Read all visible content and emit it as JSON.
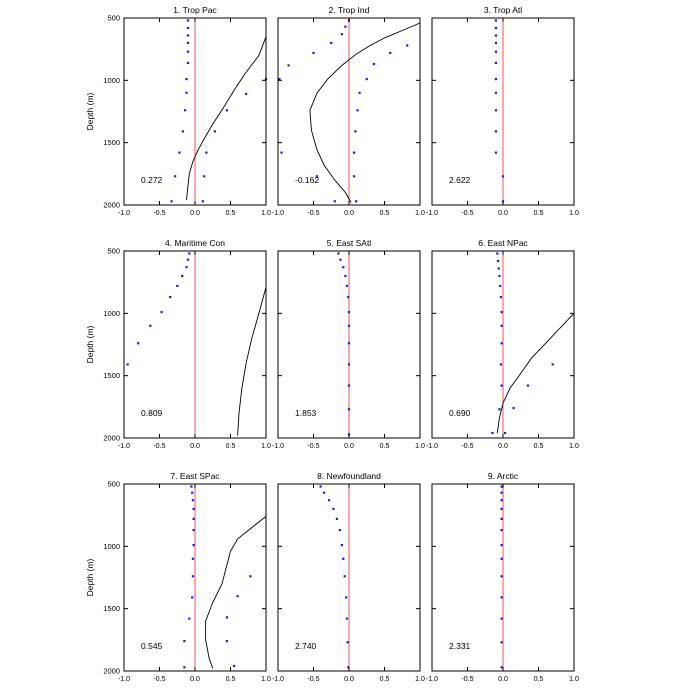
{
  "figure": {
    "ylabel": "Depth (m)",
    "xticks": [
      "-1.0",
      "-0.5",
      "0.0",
      "0.5",
      "1.0"
    ],
    "yticks": [
      "500",
      "1000",
      "1500",
      "2000"
    ]
  },
  "colors": {
    "zero_line": "#ff4d4d",
    "dots": "#1a1aff",
    "curve": "#000000"
  },
  "chart_data": [
    {
      "type": "line",
      "title": "1. Trop Pac",
      "value_label": "0.272",
      "xlim": [
        -1,
        1
      ],
      "ylim": [
        2000,
        500
      ],
      "curve": [
        [
          1.0,
          650
        ],
        [
          0.9,
          800
        ],
        [
          0.7,
          950
        ],
        [
          0.55,
          1080
        ],
        [
          0.4,
          1220
        ],
        [
          0.25,
          1350
        ],
        [
          0.15,
          1450
        ],
        [
          0.05,
          1550
        ],
        [
          -0.03,
          1650
        ],
        [
          -0.08,
          1750
        ],
        [
          -0.1,
          1850
        ],
        [
          -0.12,
          1960
        ]
      ],
      "dots": [
        [
          -0.1,
          520
        ],
        [
          -0.1,
          580
        ],
        [
          -0.1,
          640
        ],
        [
          -0.1,
          700
        ],
        [
          -0.1,
          770
        ],
        [
          -0.1,
          860
        ],
        [
          -0.12,
          990
        ],
        [
          -0.12,
          1100
        ],
        [
          -0.14,
          1240
        ],
        [
          -0.17,
          1410
        ],
        [
          -0.22,
          1580
        ],
        [
          -0.28,
          1770
        ],
        [
          -0.33,
          1970
        ],
        [
          1.0,
          990
        ],
        [
          0.72,
          1110
        ],
        [
          0.45,
          1240
        ],
        [
          0.28,
          1410
        ],
        [
          0.16,
          1580
        ],
        [
          0.13,
          1770
        ],
        [
          0.11,
          1970
        ]
      ]
    },
    {
      "type": "line",
      "title": "2. Trop Ind",
      "value_label": "-0.162",
      "xlim": [
        -1,
        1
      ],
      "ylim": [
        2000,
        500
      ],
      "curve": [
        [
          1.0,
          540
        ],
        [
          0.75,
          600
        ],
        [
          0.5,
          660
        ],
        [
          0.3,
          720
        ],
        [
          0.1,
          790
        ],
        [
          -0.1,
          880
        ],
        [
          -0.3,
          990
        ],
        [
          -0.45,
          1100
        ],
        [
          -0.55,
          1240
        ],
        [
          -0.53,
          1400
        ],
        [
          -0.45,
          1560
        ],
        [
          -0.35,
          1680
        ],
        [
          -0.2,
          1800
        ],
        [
          -0.05,
          1900
        ],
        [
          0.03,
          1980
        ]
      ],
      "dots": [
        [
          0.0,
          520
        ],
        [
          -0.05,
          570
        ],
        [
          -0.1,
          630
        ],
        [
          -0.25,
          700
        ],
        [
          -0.5,
          780
        ],
        [
          -0.85,
          880
        ],
        [
          -0.98,
          990
        ],
        [
          -0.95,
          1580
        ],
        [
          -0.45,
          1770
        ],
        [
          -0.2,
          1970
        ],
        [
          0.82,
          720
        ],
        [
          0.58,
          780
        ],
        [
          0.35,
          870
        ],
        [
          0.25,
          990
        ],
        [
          0.15,
          1100
        ],
        [
          0.12,
          1240
        ],
        [
          0.09,
          1410
        ],
        [
          0.07,
          1580
        ],
        [
          0.07,
          1770
        ],
        [
          0.1,
          1970
        ]
      ]
    },
    {
      "type": "line",
      "title": "3. Trop Atl",
      "value_label": "2.622",
      "xlim": [
        -1,
        1
      ],
      "ylim": [
        2000,
        500
      ],
      "curve": [],
      "dots": [
        [
          -0.1,
          520
        ],
        [
          -0.1,
          580
        ],
        [
          -0.1,
          640
        ],
        [
          -0.1,
          700
        ],
        [
          -0.1,
          770
        ],
        [
          -0.1,
          860
        ],
        [
          -0.1,
          990
        ],
        [
          -0.1,
          1100
        ],
        [
          -0.1,
          1240
        ],
        [
          -0.1,
          1410
        ],
        [
          -0.1,
          1580
        ],
        [
          0.0,
          1770
        ],
        [
          0.0,
          1970
        ]
      ]
    },
    {
      "type": "line",
      "title": "4. Maritime Con",
      "value_label": "0.809",
      "xlim": [
        -1,
        1
      ],
      "ylim": [
        2000,
        500
      ],
      "curve": [
        [
          1.0,
          790
        ],
        [
          0.9,
          1000
        ],
        [
          0.8,
          1200
        ],
        [
          0.72,
          1400
        ],
        [
          0.66,
          1600
        ],
        [
          0.62,
          1800
        ],
        [
          0.6,
          1980
        ]
      ],
      "dots": [
        [
          -0.08,
          520
        ],
        [
          -0.1,
          570
        ],
        [
          -0.12,
          630
        ],
        [
          -0.18,
          700
        ],
        [
          -0.25,
          780
        ],
        [
          -0.35,
          870
        ],
        [
          -0.47,
          990
        ],
        [
          -0.63,
          1100
        ],
        [
          -0.8,
          1240
        ],
        [
          -0.95,
          1410
        ]
      ]
    },
    {
      "type": "line",
      "title": "5. East SAtl",
      "value_label": "1.853",
      "xlim": [
        -1,
        1
      ],
      "ylim": [
        2000,
        500
      ],
      "curve": [],
      "dots": [
        [
          -0.15,
          520
        ],
        [
          -0.12,
          570
        ],
        [
          -0.08,
          630
        ],
        [
          -0.05,
          700
        ],
        [
          -0.03,
          780
        ],
        [
          -0.01,
          870
        ],
        [
          0.0,
          990
        ],
        [
          0.0,
          1100
        ],
        [
          0.0,
          1240
        ],
        [
          0.0,
          1410
        ],
        [
          0.0,
          1580
        ],
        [
          0.0,
          1770
        ],
        [
          0.0,
          1970
        ]
      ]
    },
    {
      "type": "line",
      "title": "6. East NPac",
      "value_label": "0.690",
      "xlim": [
        -1,
        1
      ],
      "ylim": [
        2000,
        500
      ],
      "curve": [
        [
          1.0,
          1000
        ],
        [
          0.8,
          1120
        ],
        [
          0.6,
          1240
        ],
        [
          0.4,
          1360
        ],
        [
          0.25,
          1480
        ],
        [
          0.1,
          1600
        ],
        [
          0.0,
          1720
        ],
        [
          -0.05,
          1840
        ],
        [
          -0.08,
          1960
        ]
      ],
      "dots": [
        [
          -0.08,
          520
        ],
        [
          -0.07,
          580
        ],
        [
          -0.06,
          640
        ],
        [
          -0.05,
          700
        ],
        [
          -0.04,
          780
        ],
        [
          -0.03,
          870
        ],
        [
          -0.02,
          990
        ],
        [
          -0.02,
          1100
        ],
        [
          -0.02,
          1240
        ],
        [
          -0.03,
          1410
        ],
        [
          -0.02,
          1580
        ],
        [
          -0.05,
          1770
        ],
        [
          -0.15,
          1960
        ],
        [
          0.7,
          1410
        ],
        [
          0.35,
          1580
        ],
        [
          0.15,
          1760
        ],
        [
          0.03,
          1960
        ]
      ]
    },
    {
      "type": "line",
      "title": "7. East SPac",
      "value_label": "0.545",
      "xlim": [
        -1,
        1
      ],
      "ylim": [
        2000,
        500
      ],
      "curve": [
        [
          1.0,
          760
        ],
        [
          0.8,
          850
        ],
        [
          0.6,
          940
        ],
        [
          0.5,
          1040
        ],
        [
          0.45,
          1150
        ],
        [
          0.38,
          1300
        ],
        [
          0.25,
          1450
        ],
        [
          0.15,
          1600
        ],
        [
          0.15,
          1750
        ],
        [
          0.2,
          1900
        ],
        [
          0.25,
          1980
        ]
      ],
      "dots": [
        [
          -0.05,
          520
        ],
        [
          -0.04,
          570
        ],
        [
          -0.03,
          630
        ],
        [
          -0.02,
          700
        ],
        [
          -0.02,
          780
        ],
        [
          -0.02,
          870
        ],
        [
          -0.02,
          990
        ],
        [
          -0.03,
          1100
        ],
        [
          -0.03,
          1240
        ],
        [
          -0.04,
          1410
        ],
        [
          -0.08,
          1580
        ],
        [
          -0.15,
          1760
        ],
        [
          -0.15,
          1970
        ],
        [
          0.78,
          1240
        ],
        [
          0.6,
          1400
        ],
        [
          0.45,
          1570
        ],
        [
          0.45,
          1760
        ],
        [
          0.55,
          1960
        ]
      ]
    },
    {
      "type": "line",
      "title": "8. Newfoundland",
      "value_label": "2.740",
      "xlim": [
        -1,
        1
      ],
      "ylim": [
        2000,
        500
      ],
      "curve": [],
      "dots": [
        [
          -0.4,
          520
        ],
        [
          -0.35,
          570
        ],
        [
          -0.28,
          630
        ],
        [
          -0.22,
          700
        ],
        [
          -0.17,
          780
        ],
        [
          -0.13,
          870
        ],
        [
          -0.1,
          990
        ],
        [
          -0.08,
          1100
        ],
        [
          -0.06,
          1240
        ],
        [
          -0.04,
          1410
        ],
        [
          -0.03,
          1580
        ],
        [
          -0.02,
          1770
        ],
        [
          -0.01,
          1970
        ]
      ]
    },
    {
      "type": "line",
      "title": "9. Arctic",
      "value_label": "2.331",
      "xlim": [
        -1,
        1
      ],
      "ylim": [
        2000,
        500
      ],
      "curve": [],
      "dots": [
        [
          -0.02,
          520
        ],
        [
          -0.02,
          570
        ],
        [
          -0.02,
          630
        ],
        [
          -0.02,
          700
        ],
        [
          -0.02,
          780
        ],
        [
          -0.02,
          870
        ],
        [
          -0.02,
          990
        ],
        [
          -0.02,
          1100
        ],
        [
          -0.02,
          1240
        ],
        [
          -0.02,
          1410
        ],
        [
          -0.02,
          1580
        ],
        [
          -0.02,
          1770
        ],
        [
          -0.02,
          1970
        ]
      ]
    }
  ]
}
